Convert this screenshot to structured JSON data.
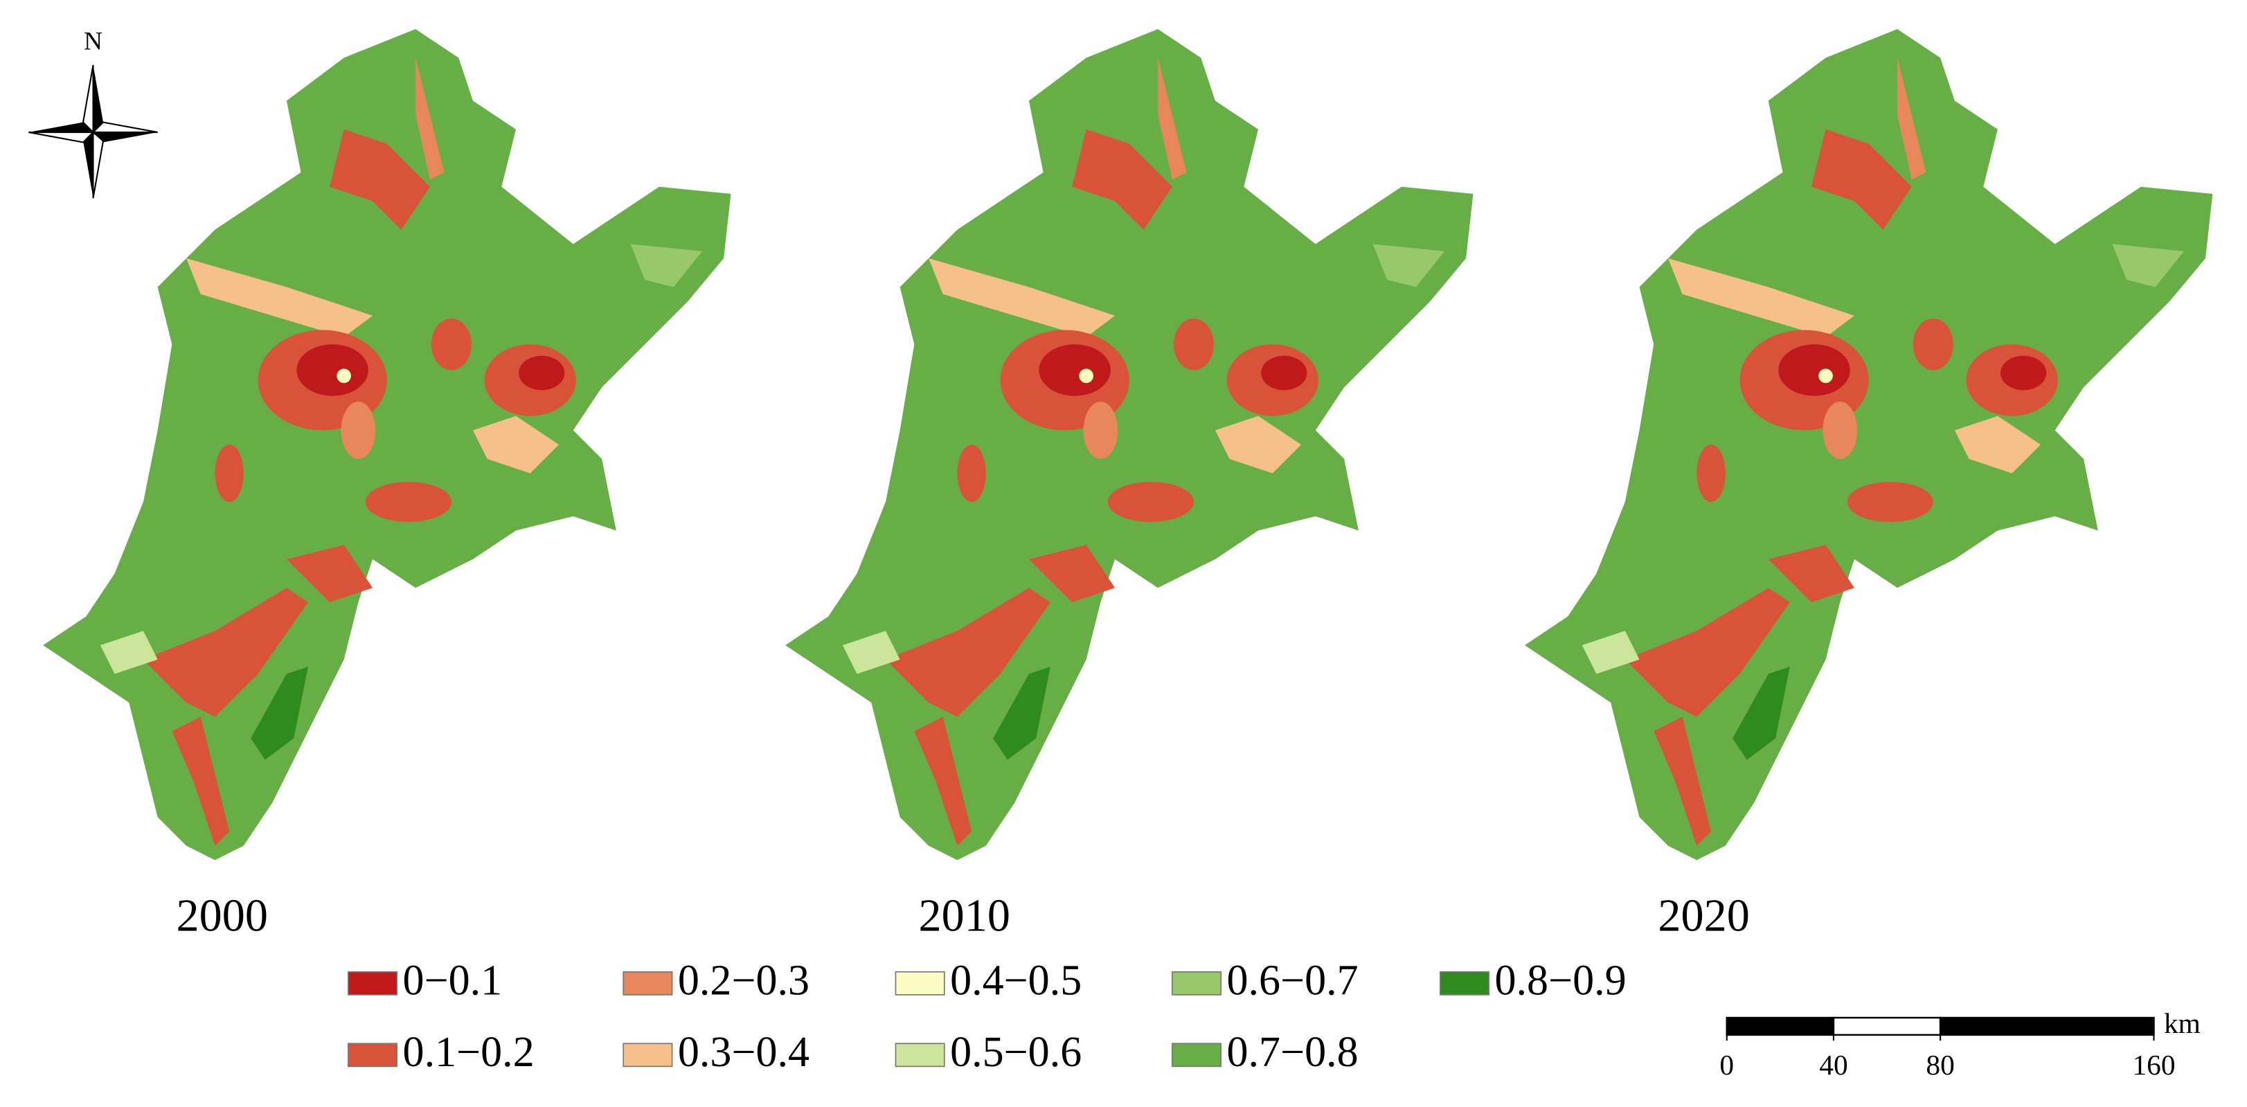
{
  "north": "N",
  "panels": [
    {
      "label": "2000"
    },
    {
      "label": "2010"
    },
    {
      "label": "2020"
    }
  ],
  "legend": [
    {
      "label": "0−0.1",
      "color": "#c0191c"
    },
    {
      "label": "0.1−0.2",
      "color": "#d9533a"
    },
    {
      "label": "0.2−0.3",
      "color": "#e8875c"
    },
    {
      "label": "0.3−0.4",
      "color": "#f5c08a"
    },
    {
      "label": "0.4−0.5",
      "color": "#fdfbc4"
    },
    {
      "label": "0.5−0.6",
      "color": "#cbe69a"
    },
    {
      "label": "0.6−0.7",
      "color": "#97c96a"
    },
    {
      "label": "0.7−0.8",
      "color": "#68ae47"
    },
    {
      "label": "0.8−0.9",
      "color": "#2e8b1e"
    }
  ],
  "scale_bar": {
    "ticks": [
      0,
      40,
      80,
      160
    ],
    "unit": "km"
  }
}
